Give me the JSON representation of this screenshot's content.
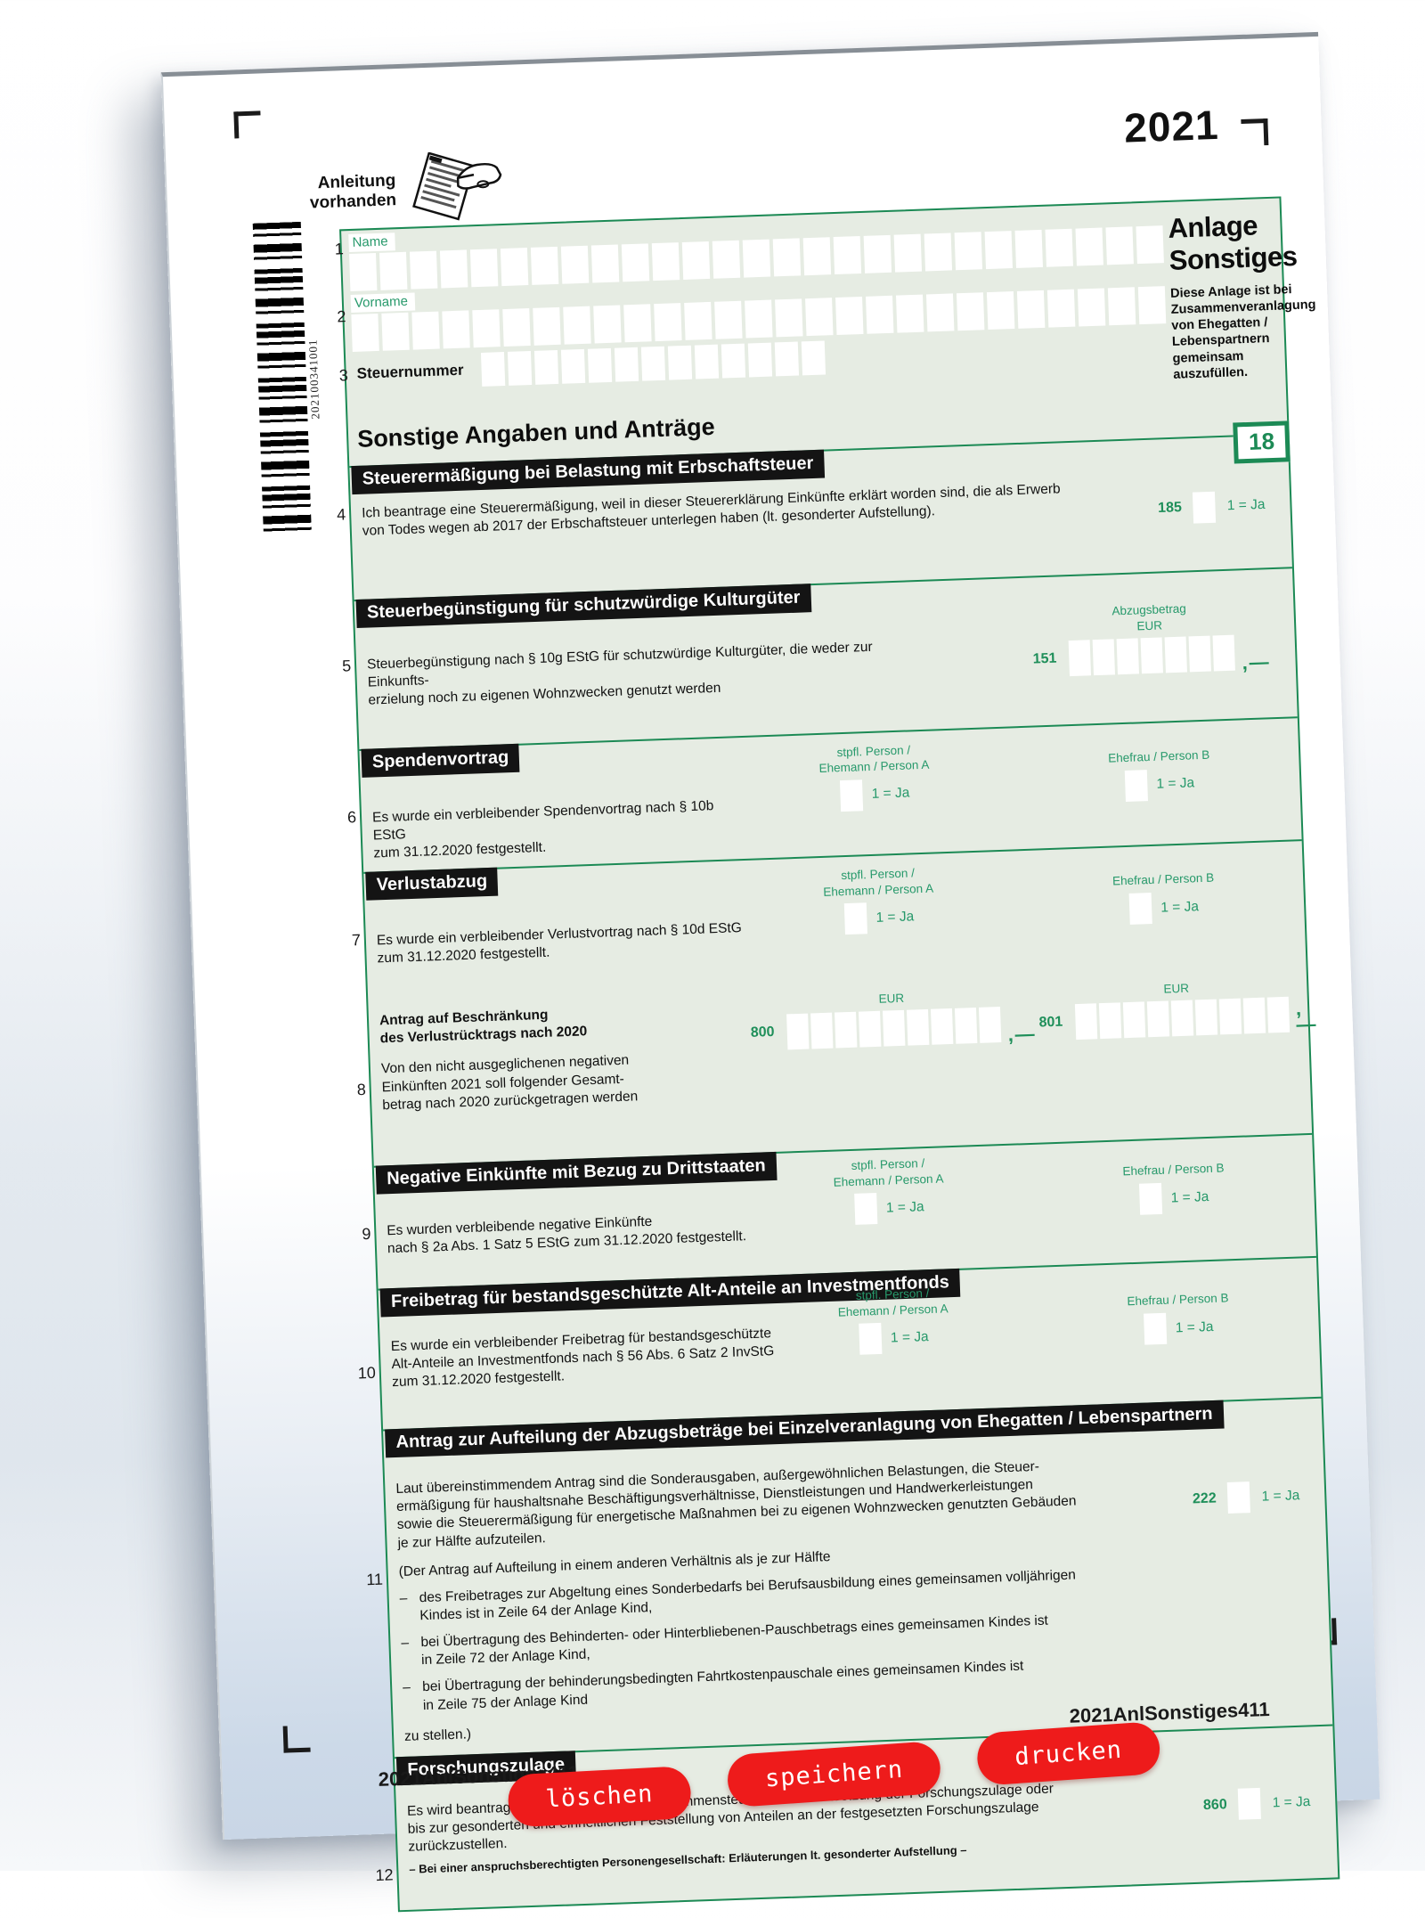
{
  "page": {
    "year": "2021",
    "instruction_note": "Anleitung\nvorhanden",
    "barcode_text": "202100341001"
  },
  "header": {
    "title": "Anlage Sonstiges",
    "subtitle": "Diese Anlage ist bei Zusammenveranlagung von Ehegatten / Lebenspartnern gemeinsam auszufüllen.",
    "section_title": "Sonstige Angaben und Anträge",
    "page_number_box": "18",
    "fields": [
      {
        "row": "1",
        "label": "Name",
        "boxes": 27
      },
      {
        "row": "2",
        "label": "Vorname",
        "boxes": 27
      },
      {
        "row": "3",
        "label": "Steuernummer",
        "boxes": 13
      }
    ]
  },
  "labels": {
    "person_a": "stpfl. Person /\nEhemann / Person A",
    "person_b": "Ehefrau / Person B",
    "yes": "1 = Ja",
    "eur": "EUR"
  },
  "sections": [
    {
      "heading": "Steuerermäßigung bei Belastung mit Erbschaftsteuer",
      "row": "4",
      "text": "Ich beantrage eine Steuerermäßigung, weil in dieser Steuererklärung Einkünfte erklärt worden sind, die als Erwerb\nvon Todes wegen ab 2017 der Erbschaftsteuer unterlegen haben (lt. gesonderter Aufstellung).",
      "field_code": "185"
    },
    {
      "heading": "Steuerbegünstigung für schutzwürdige Kulturgüter",
      "row": "5",
      "text": "Steuerbegünstigung nach § 10g EStG für schutzwürdige Kulturgüter, die weder zur Einkunfts-\nerzielung noch zu eigenen Wohnzwecken genutzt werden",
      "amount_label": "Abzugsbetrag",
      "field_code": "151",
      "boxes": 7
    },
    {
      "heading": "Spendenvortrag",
      "row": "6",
      "text": "Es wurde ein verbleibender Spendenvortrag nach § 10b EStG\nzum 31.12.2020 festgestellt."
    },
    {
      "heading": "Verlustabzug",
      "row": "7",
      "text": "Es wurde ein verbleibender Verlustvortrag nach § 10d EStG\nzum 31.12.2020 festgestellt.",
      "subheading": "Antrag auf Beschränkung\ndes Verlustrücktrags nach 2020",
      "row2": "8",
      "text2": "Von den nicht ausgeglichenen negativen\nEinkünften 2021 soll folgender Gesamt-\nbetrag nach 2020 zurückgetragen werden",
      "field_code_a": "800",
      "field_code_b": "801",
      "boxes": 9
    },
    {
      "heading": "Negative Einkünfte mit Bezug zu Drittstaaten",
      "row": "9",
      "text": "Es wurden verbleibende negative Einkünfte\nnach § 2a Abs. 1 Satz 5 EStG zum 31.12.2020 festgestellt."
    },
    {
      "heading": "Freibetrag für bestandsgeschützte Alt-Anteile an Investmentfonds",
      "row": "10",
      "text": "Es wurde ein verbleibender Freibetrag für bestandsgeschützte\nAlt-Anteile an Investmentfonds nach § 56 Abs. 6 Satz 2 InvStG\nzum 31.12.2020 festgestellt."
    },
    {
      "heading": "Antrag zur Aufteilung der Abzugsbeträge bei Einzelveranlagung von Ehegatten / Lebenspartnern",
      "row": "11",
      "text": "Laut übereinstimmendem Antrag sind die Sonderausgaben, außergewöhnlichen Belastungen, die Steuer-\nermäßigung für haushaltsnahe Beschäftigungsverhältnisse, Dienstleistungen und Handwerkerleistungen\nsowie die Steuerermäßigung für energetische Maßnahmen bei zu eigenen Wohnzwecken genutzten Gebäuden\nje zur Hälfte aufzuteilen.",
      "field_code": "222",
      "note_intro": "(Der Antrag auf Aufteilung in einem anderen Verhältnis als je zur Hälfte",
      "bullets": [
        "des Freibetrages zur Abgeltung eines Sonderbedarfs bei Berufsausbildung eines gemeinsamen volljährigen\nKindes ist in Zeile 64 der Anlage Kind,",
        "bei Übertragung des Behinderten- oder Hinterbliebenen-Pauschbetrags eines gemeinsamen Kindes ist\nin Zeile 72 der Anlage Kind,",
        "bei Übertragung der behinderungsbedingten Fahrtkostenpauschale eines gemeinsamen Kindes ist\nin Zeile 75 der Anlage Kind"
      ],
      "note_outro": "zu stellen.)"
    },
    {
      "heading": "Forschungszulage",
      "row": "12",
      "text": "Es wird beantragt, die Festsetzung der Einkommensteuer bis zur Festsetzung der Forschungszulage oder\nbis zur gesonderten und einheitlichen Feststellung von Anteilen an der festgesetzten Forschungszulage\nzurückzustellen.",
      "field_code": "860",
      "footnote": "–  Bei einer anspruchsberechtigten Personengesellschaft: Erläuterungen lt. gesonderter Aufstellung  –"
    }
  ],
  "footer": {
    "form_code": "2021AnlSonstiges411",
    "buttons": [
      "löschen",
      "speichern",
      "drucken"
    ]
  },
  "colors": {
    "form_green_line": "#1c8a55",
    "form_green_text": "#27996b",
    "form_background": "#e6ece3",
    "header_bar": "#141414",
    "button_red": "#ee1b1b"
  }
}
